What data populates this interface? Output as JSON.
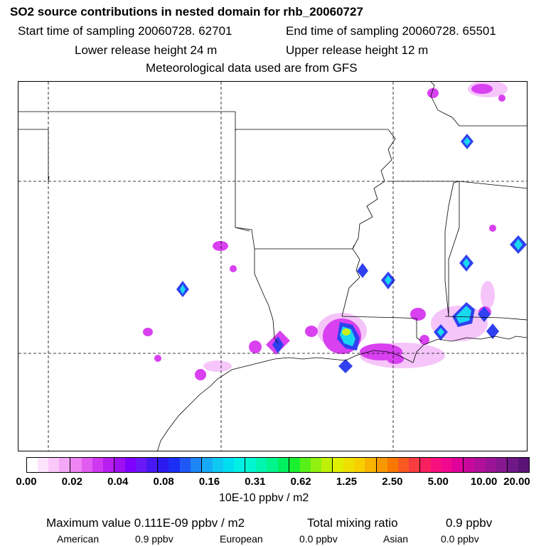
{
  "header": {
    "title": "SO2 source contributions in nested domain for rhb_20060727",
    "start_time_label": "Start time of sampling 20060728. 62701",
    "end_time_label": "End time of sampling 20060728. 65501",
    "lower_release_label": "Lower release height   24 m",
    "upper_release_label": "Upper release height   12 m",
    "meteo_label": "Meteorological data used are from GFS"
  },
  "colorbar": {
    "labels": [
      "0.00",
      "0.02",
      "0.04",
      "0.08",
      "0.16",
      "0.31",
      "0.62",
      "1.25",
      "2.50",
      "5.00",
      "10.00",
      "20.00"
    ],
    "colors": [
      "#ffffff",
      "#fde4fd",
      "#fac8fa",
      "#f5a8f7",
      "#ef84f4",
      "#e25cf2",
      "#cf38f0",
      "#b81ef0",
      "#9f10f0",
      "#8000ff",
      "#6a18f8",
      "#4818f2",
      "#2a1af0",
      "#1c2ef5",
      "#1f58f5",
      "#1c86f5",
      "#16aaf5",
      "#0ec8f2",
      "#00def0",
      "#00f0e6",
      "#00f5d0",
      "#00f5b0",
      "#00f58c",
      "#00f060",
      "#18f030",
      "#58f018",
      "#90f010",
      "#c0f008",
      "#e0f000",
      "#f0e000",
      "#f8d000",
      "#f8b400",
      "#f89800",
      "#f87800",
      "#f85a20",
      "#f83c40",
      "#f82060",
      "#f81080",
      "#f00890",
      "#e0009a",
      "#c8089a",
      "#b0109a",
      "#9a1498",
      "#861890",
      "#701888",
      "#5a1478"
    ],
    "unit_label": "10E-10 ppbv / m2"
  },
  "stats": {
    "max_label": "Maximum value  0.111E-09 ppbv / m2",
    "total_label": "Total mixing ratio",
    "total_value": "0.9 ppbv"
  },
  "regions": [
    {
      "name": "American",
      "value": "0.9 ppbv"
    },
    {
      "name": "European",
      "value": "0.0 ppbv"
    },
    {
      "name": "Asian",
      "value": "0.0 ppbv"
    }
  ]
}
